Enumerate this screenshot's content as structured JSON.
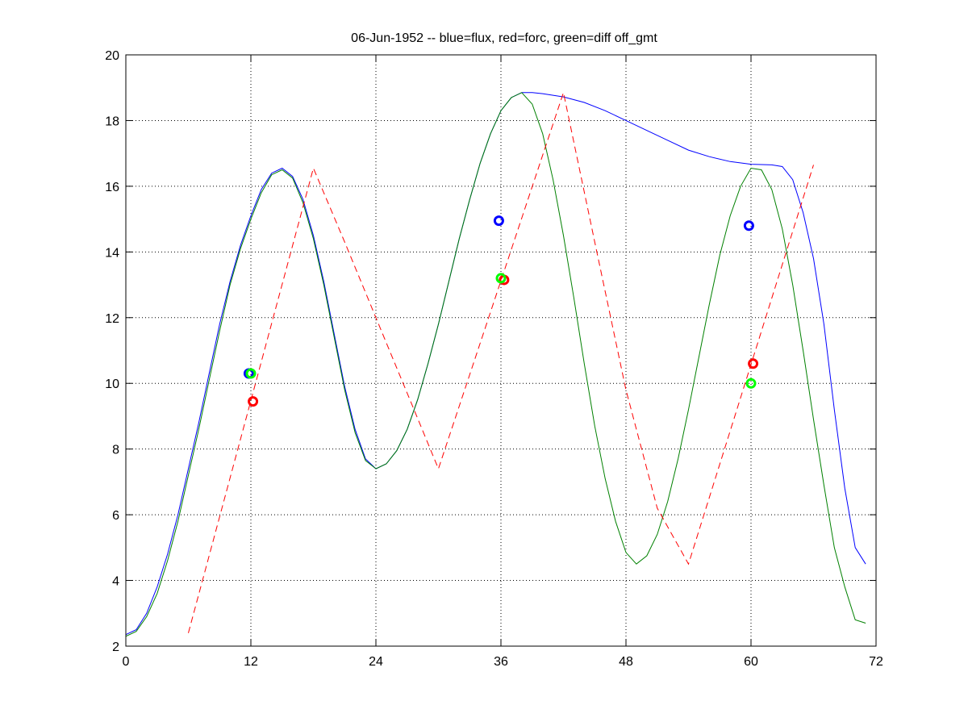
{
  "chart_data": {
    "type": "line",
    "title": "06-Jun-1952 -- blue=flux, red=forc, green=diff off_gmt",
    "xlabel": "",
    "ylabel": "",
    "xlim": [
      0,
      72
    ],
    "ylim": [
      2,
      20
    ],
    "xticks": [
      0,
      12,
      24,
      36,
      48,
      60,
      72
    ],
    "yticks": [
      2,
      4,
      6,
      8,
      10,
      12,
      14,
      16,
      18,
      20
    ],
    "grid": true,
    "legend": "none",
    "series": [
      {
        "color": "#0000ff",
        "style": "solid",
        "x": [
          0,
          1,
          2,
          3,
          4,
          5,
          6,
          7,
          8,
          9,
          10,
          11,
          12,
          13,
          14,
          15,
          16,
          17,
          18,
          19,
          20,
          21,
          22,
          23,
          24,
          25,
          26,
          27,
          28,
          29,
          30,
          31,
          32,
          33,
          34,
          35,
          36,
          37,
          38,
          39,
          40,
          42,
          44,
          46,
          48,
          50,
          52,
          54,
          56,
          58,
          60,
          62,
          63,
          64,
          65,
          66,
          67,
          68,
          69,
          70,
          71
        ],
        "y": [
          2.35,
          2.5,
          3.0,
          3.8,
          4.8,
          6.0,
          7.4,
          8.8,
          10.3,
          11.8,
          13.1,
          14.2,
          15.1,
          15.9,
          16.4,
          16.55,
          16.3,
          15.6,
          14.5,
          13.1,
          11.5,
          9.9,
          8.6,
          7.7,
          7.4,
          7.55,
          7.95,
          8.6,
          9.5,
          10.6,
          11.8,
          13.1,
          14.4,
          15.6,
          16.7,
          17.6,
          18.3,
          18.7,
          18.85,
          18.85,
          18.82,
          18.72,
          18.55,
          18.3,
          18.0,
          17.7,
          17.4,
          17.1,
          16.9,
          16.75,
          16.67,
          16.65,
          16.6,
          16.2,
          15.2,
          13.8,
          11.8,
          9.2,
          6.8,
          5.0,
          4.5
        ]
      },
      {
        "color": "#008000",
        "style": "solid",
        "x": [
          0,
          1,
          2,
          3,
          4,
          5,
          6,
          7,
          8,
          9,
          10,
          11,
          12,
          13,
          14,
          15,
          16,
          17,
          18,
          19,
          20,
          21,
          22,
          23,
          24,
          25,
          26,
          27,
          28,
          29,
          30,
          31,
          32,
          33,
          34,
          35,
          36,
          37,
          38,
          39,
          40,
          41,
          42,
          43,
          44,
          45,
          46,
          47,
          48,
          49,
          50,
          51,
          52,
          53,
          54,
          55,
          56,
          57,
          58,
          59,
          60,
          61,
          62,
          63,
          64,
          65,
          66,
          67,
          68,
          69,
          70,
          71
        ],
        "y": [
          2.3,
          2.45,
          2.9,
          3.6,
          4.6,
          5.8,
          7.2,
          8.6,
          10.1,
          11.6,
          13.0,
          14.1,
          15.0,
          15.8,
          16.35,
          16.5,
          16.25,
          15.5,
          14.4,
          13.0,
          11.4,
          9.8,
          8.5,
          7.65,
          7.4,
          7.55,
          7.95,
          8.6,
          9.5,
          10.6,
          11.8,
          13.1,
          14.4,
          15.6,
          16.7,
          17.6,
          18.3,
          18.7,
          18.85,
          18.5,
          17.6,
          16.2,
          14.5,
          12.6,
          10.6,
          8.7,
          7.1,
          5.8,
          4.85,
          4.5,
          4.75,
          5.4,
          6.4,
          7.7,
          9.2,
          10.8,
          12.4,
          13.9,
          15.1,
          16.0,
          16.55,
          16.5,
          15.9,
          14.7,
          13.0,
          11.0,
          8.9,
          6.9,
          5.0,
          3.8,
          2.8,
          2.7
        ]
      },
      {
        "color": "#ff0000",
        "style": "dashed",
        "x": [
          6,
          18,
          21,
          24,
          27,
          30,
          42,
          45,
          48,
          51,
          54,
          66
        ],
        "y": [
          2.4,
          16.55,
          14.3,
          12.0,
          9.7,
          7.4,
          18.85,
          14.3,
          9.8,
          6.2,
          4.5,
          16.65
        ]
      }
    ],
    "markers": [
      {
        "color": "#0000ff",
        "x": [
          11.8,
          35.8,
          59.8
        ],
        "y": [
          10.3,
          14.95,
          14.8
        ]
      },
      {
        "color": "#ff0000",
        "x": [
          12.2,
          36.3,
          60.2
        ],
        "y": [
          9.45,
          13.15,
          10.6
        ]
      },
      {
        "color": "#00ff00",
        "x": [
          12.0,
          36.0,
          60.0
        ],
        "y": [
          10.3,
          13.2,
          10.0
        ]
      }
    ]
  }
}
